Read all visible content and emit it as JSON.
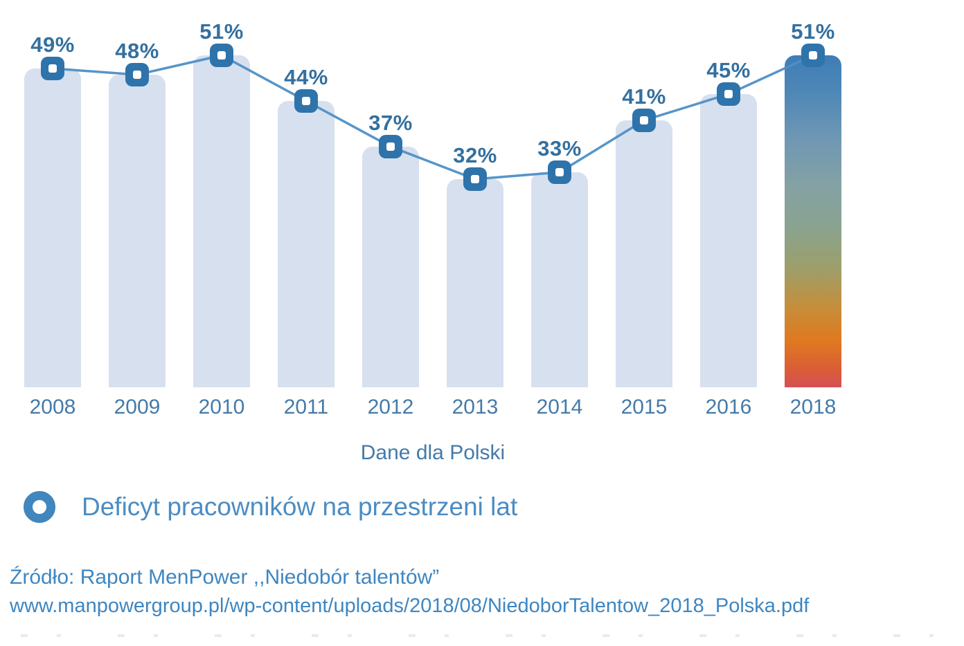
{
  "chart_data": {
    "type": "bar",
    "overlay": "line",
    "categories": [
      "2008",
      "2009",
      "2010",
      "2011",
      "2012",
      "2013",
      "2014",
      "2015",
      "2016",
      "2018"
    ],
    "series": [
      {
        "name": "Deficyt pracowników na przestrzeni lat",
        "values": [
          49,
          48,
          51,
          44,
          37,
          32,
          33,
          41,
          45,
          51
        ]
      }
    ],
    "value_labels": [
      "49%",
      "48%",
      "51%",
      "44%",
      "37%",
      "32%",
      "33%",
      "41%",
      "45%",
      "51%"
    ],
    "title": "",
    "xlabel": "Dane dla Polski",
    "ylabel": "",
    "ylim": [
      0,
      51
    ],
    "grid": false,
    "legend_position": "bottom-left",
    "highlight_category": "2018"
  },
  "legend": {
    "marker_icon": "donut-circle-icon",
    "label": "Deficyt pracowników na przestrzeni lat"
  },
  "source": {
    "line1": "Źródło: Raport MenPower ,,Niedobór talentów”",
    "line2": "www.manpowergroup.pl/wp-content/uploads/2018/08/NiedoborTalentow_2018_Polska.pdf"
  },
  "colors": {
    "bar_fill": "#d7e0ef",
    "line": "#4e8fc5",
    "marker": "#2f73ab",
    "value_label": "#33709f",
    "year_label": "#447aa9",
    "axis_title": "#447aa9",
    "legend_icon": "#4186bd",
    "legend_text": "#4b8cc3",
    "source_text": "#3e86c1",
    "highlight_gradient_top": "#3f7db5",
    "highlight_gradient_middle": "#8aa38f",
    "highlight_gradient_bottom": "#d45056"
  }
}
